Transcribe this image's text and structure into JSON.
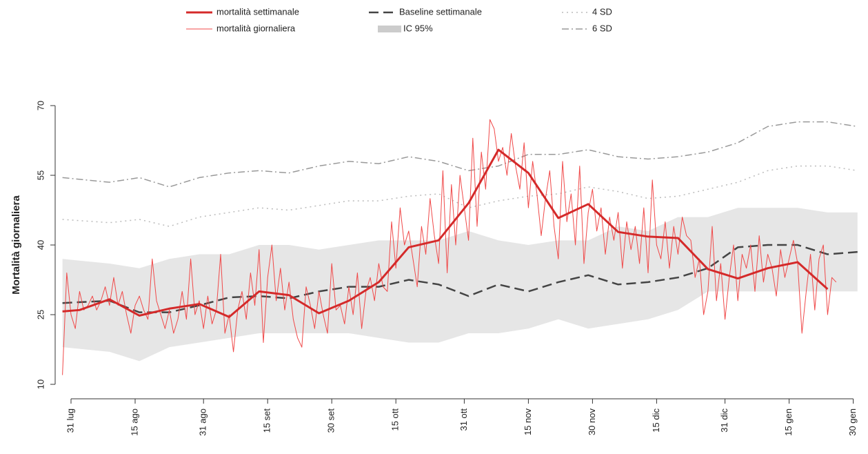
{
  "chart_data": {
    "type": "line",
    "ylabel": "Mortalità giornaliera",
    "xlim": [
      -2,
      185
    ],
    "ylim": [
      8,
      72
    ],
    "yticks": [
      10,
      25,
      40,
      55,
      70
    ],
    "xticks": [
      {
        "value": 0,
        "label": "31 lug"
      },
      {
        "value": 15,
        "label": "15 ago"
      },
      {
        "value": 31,
        "label": "31 ago"
      },
      {
        "value": 46,
        "label": "15 set"
      },
      {
        "value": 61,
        "label": "30 set"
      },
      {
        "value": 76,
        "label": "15 ott"
      },
      {
        "value": 92,
        "label": "31 ott"
      },
      {
        "value": 107,
        "label": "15 nov"
      },
      {
        "value": 122,
        "label": "30 nov"
      },
      {
        "value": 137,
        "label": "15 dic"
      },
      {
        "value": 153,
        "label": "31 dic"
      },
      {
        "value": 168,
        "label": "15 gen"
      },
      {
        "value": 183,
        "label": "30 gen"
      }
    ],
    "band": {
      "name": "IC 95%",
      "color": "#e6e6e6",
      "x": [
        -2,
        9,
        16,
        23,
        30,
        37,
        44,
        51,
        58,
        65,
        72,
        79,
        86,
        93,
        100,
        107,
        114,
        121,
        128,
        135,
        142,
        149,
        156,
        163,
        170,
        177,
        184
      ],
      "lower": [
        18,
        17,
        15,
        18,
        19,
        20,
        21,
        21,
        21,
        21,
        20,
        19,
        19,
        21,
        21,
        22,
        24,
        22,
        23,
        24,
        26,
        30,
        30,
        30,
        30,
        30,
        30
      ],
      "upper": [
        37,
        36,
        35,
        37,
        38,
        38,
        40,
        40,
        39,
        40,
        41,
        41,
        41,
        43,
        41,
        40,
        41,
        41,
        44,
        43,
        46,
        46,
        48,
        48,
        48,
        47,
        47
      ]
    },
    "series": [
      {
        "name": "mortalità settimanale",
        "color": "#d42a2a",
        "width": 3,
        "dash": "solid",
        "x": [
          -2,
          2,
          9,
          16,
          23,
          30,
          37,
          44,
          51,
          58,
          65,
          72,
          79,
          86,
          93,
          100,
          107,
          114,
          121,
          128,
          135,
          142,
          149,
          156,
          163,
          170,
          177
        ],
        "values": [
          25.7,
          26,
          28.3,
          24.8,
          26.3,
          27.3,
          24.5,
          30,
          29.2,
          25.3,
          28,
          32,
          39.5,
          41,
          49,
          60.5,
          55.5,
          45.8,
          48.8,
          42.8,
          41.8,
          41.5,
          34.8,
          32.8,
          35,
          36.3,
          30.5
        ]
      },
      {
        "name": "mortalità giornaliera",
        "color": "#f04848",
        "width": 1,
        "dash": "solid",
        "x": [
          -2,
          -1,
          0,
          1,
          2,
          3,
          4,
          5,
          6,
          7,
          8,
          9,
          10,
          11,
          12,
          13,
          14,
          15,
          16,
          17,
          18,
          19,
          20,
          21,
          22,
          23,
          24,
          25,
          26,
          27,
          28,
          29,
          30,
          31,
          32,
          33,
          34,
          35,
          36,
          37,
          38,
          39,
          40,
          41,
          42,
          43,
          44,
          45,
          46,
          47,
          48,
          49,
          50,
          51,
          52,
          53,
          54,
          55,
          56,
          57,
          58,
          59,
          60,
          61,
          62,
          63,
          64,
          65,
          66,
          67,
          68,
          69,
          70,
          71,
          72,
          73,
          74,
          75,
          76,
          77,
          78,
          79,
          80,
          81,
          82,
          83,
          84,
          85,
          86,
          87,
          88,
          89,
          90,
          91,
          92,
          93,
          94,
          95,
          96,
          97,
          98,
          99,
          100,
          101,
          102,
          103,
          104,
          105,
          106,
          107,
          108,
          109,
          110,
          111,
          112,
          113,
          114,
          115,
          116,
          117,
          118,
          119,
          120,
          121,
          122,
          123,
          124,
          125,
          126,
          127,
          128,
          129,
          130,
          131,
          132,
          133,
          134,
          135,
          136,
          137,
          138,
          139,
          140,
          141,
          142,
          143,
          144,
          145,
          146,
          147,
          148,
          149,
          150,
          151,
          152,
          153,
          154,
          155,
          156,
          157,
          158,
          159,
          160,
          161,
          162,
          163,
          164,
          165,
          166,
          167,
          168,
          169,
          170,
          171,
          172,
          173,
          174,
          175,
          176,
          177,
          178,
          179
        ],
        "values": [
          12,
          34,
          25,
          22,
          30,
          26,
          27,
          29,
          26,
          28,
          31,
          27,
          33,
          27,
          30,
          25,
          21,
          27,
          29,
          26,
          24,
          37,
          28,
          25,
          22,
          26,
          21,
          24,
          30,
          24,
          37,
          25,
          28,
          22,
          29,
          23,
          26,
          38,
          21,
          25,
          17,
          26,
          30,
          24,
          34,
          27,
          39,
          19,
          33,
          40,
          28,
          35,
          26,
          32,
          24,
          20,
          18,
          31,
          27,
          22,
          30,
          25,
          21,
          36,
          26,
          27,
          23,
          31,
          25,
          34,
          22,
          30,
          33,
          28,
          36,
          31,
          30,
          45,
          35,
          48,
          40,
          43,
          37,
          31,
          44,
          38,
          50,
          42,
          36,
          56,
          34,
          53,
          40,
          55,
          48,
          41,
          63,
          44,
          60,
          52,
          67,
          65,
          58,
          61,
          55,
          64,
          57,
          52,
          62,
          48,
          58,
          51,
          42,
          50,
          56,
          44,
          37,
          58,
          45,
          51,
          40,
          57,
          36,
          47,
          52,
          43,
          48,
          38,
          46,
          41,
          47,
          35,
          45,
          39,
          44,
          36,
          48,
          34,
          54,
          40,
          37,
          45,
          35,
          44,
          38,
          46,
          42,
          41,
          33,
          37,
          25,
          30,
          44,
          28,
          36,
          24,
          33,
          40,
          28,
          38,
          35,
          40,
          30,
          42,
          32,
          38,
          35,
          29,
          39,
          33,
          37,
          41,
          36,
          21,
          30,
          38,
          26,
          37,
          40,
          25,
          33,
          32
        ]
      },
      {
        "name": "Baseline settimanale",
        "color": "#444444",
        "width": 2.5,
        "dash": "dashed",
        "x": [
          -2,
          9,
          16,
          23,
          30,
          37,
          44,
          51,
          58,
          65,
          72,
          79,
          86,
          93,
          100,
          107,
          114,
          121,
          128,
          135,
          142,
          149,
          156,
          163,
          170,
          177,
          184
        ],
        "values": [
          27.5,
          28,
          25.5,
          25.5,
          27,
          28.7,
          29,
          28.5,
          30,
          31,
          31,
          32.5,
          31.5,
          29,
          31.5,
          30,
          32,
          33.5,
          31.5,
          32,
          33,
          35,
          39.5,
          40,
          40,
          38,
          38.5
        ]
      },
      {
        "name": "4 SD",
        "color": "#bbbbbb",
        "width": 1.5,
        "dash": "dotted",
        "x": [
          -2,
          9,
          16,
          23,
          30,
          37,
          44,
          51,
          58,
          65,
          72,
          79,
          86,
          93,
          100,
          107,
          114,
          121,
          128,
          135,
          142,
          149,
          156,
          163,
          170,
          177,
          184
        ],
        "values": [
          45.5,
          44.8,
          45.5,
          44,
          46,
          47,
          48,
          47.5,
          48.5,
          49.5,
          49.5,
          50.5,
          51,
          48,
          49.5,
          50.5,
          51,
          52.5,
          51.5,
          50,
          50.5,
          52,
          53.5,
          56,
          57,
          57,
          56
        ]
      },
      {
        "name": "6 SD",
        "color": "#999999",
        "width": 1.5,
        "dash": "dashdot",
        "x": [
          -2,
          9,
          16,
          23,
          30,
          37,
          44,
          51,
          58,
          65,
          72,
          79,
          86,
          93,
          100,
          107,
          114,
          121,
          128,
          135,
          142,
          149,
          156,
          163,
          170,
          177,
          184
        ],
        "values": [
          54.5,
          53.5,
          54.5,
          52.5,
          54.5,
          55.5,
          56,
          55.5,
          57,
          58,
          57.5,
          59,
          58,
          56,
          57,
          59.5,
          59.5,
          60.5,
          59,
          58.5,
          59,
          60,
          62,
          65.5,
          66.5,
          66.5,
          65.5
        ]
      }
    ]
  }
}
